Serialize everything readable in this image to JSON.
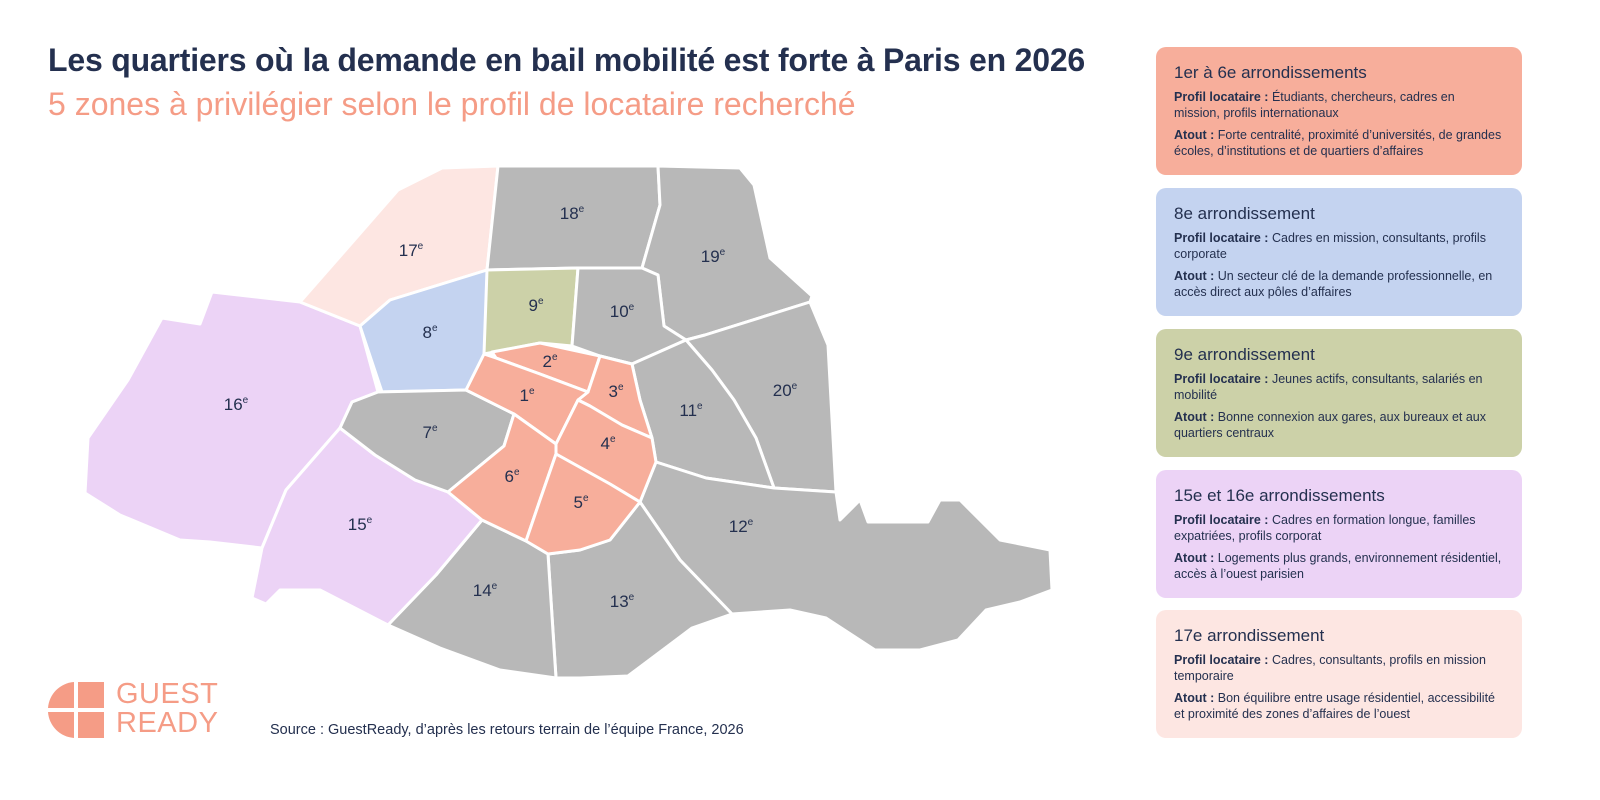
{
  "header": {
    "title": "Les quartiers où la demande en bail mobilité est forte à Paris en 2026",
    "subtitle": "5 zones à privilégier selon le profil de locataire recherché"
  },
  "colors": {
    "title": "#24304f",
    "accent": "#f59c86",
    "zone_central": "#f7ae9b",
    "zone_8": "#c4d3f0",
    "zone_9": "#ccd1a8",
    "zone_west": "#ecd3f6",
    "zone_17": "#fde6e2",
    "other": "#b8b8b8"
  },
  "map": {
    "arrondissements": [
      {
        "id": "1",
        "label": "1e",
        "zone": "central"
      },
      {
        "id": "2",
        "label": "2e",
        "zone": "central"
      },
      {
        "id": "3",
        "label": "3e",
        "zone": "central"
      },
      {
        "id": "4",
        "label": "4e",
        "zone": "central"
      },
      {
        "id": "5",
        "label": "5e",
        "zone": "central"
      },
      {
        "id": "6",
        "label": "6e",
        "zone": "central"
      },
      {
        "id": "7",
        "label": "7e",
        "zone": "other"
      },
      {
        "id": "8",
        "label": "8e",
        "zone": "8"
      },
      {
        "id": "9",
        "label": "9e",
        "zone": "9"
      },
      {
        "id": "10",
        "label": "10e",
        "zone": "other"
      },
      {
        "id": "11",
        "label": "11e",
        "zone": "other"
      },
      {
        "id": "12",
        "label": "12e",
        "zone": "other"
      },
      {
        "id": "13",
        "label": "13e",
        "zone": "other"
      },
      {
        "id": "14",
        "label": "14e",
        "zone": "other"
      },
      {
        "id": "15",
        "label": "15e",
        "zone": "west"
      },
      {
        "id": "16",
        "label": "16e",
        "zone": "west"
      },
      {
        "id": "17",
        "label": "17e",
        "zone": "17"
      },
      {
        "id": "18",
        "label": "18e",
        "zone": "other"
      },
      {
        "id": "19",
        "label": "19e",
        "zone": "other"
      },
      {
        "id": "20",
        "label": "20e",
        "zone": "other"
      }
    ]
  },
  "legend": [
    {
      "title": "1er à 6e arrondissements",
      "profile_label": "Profil locataire :",
      "profile": "Étudiants, chercheurs, cadres en mission, profils internationaux",
      "asset_label": "Atout :",
      "asset": "Forte centralité, proximité d’universités, de grandes écoles, d’institutions et de quartiers d’affaires",
      "color": "#f7ae9b"
    },
    {
      "title": "8e arrondissement",
      "profile_label": "Profil locataire :",
      "profile": "Cadres en mission, consultants, profils corporate",
      "asset_label": "Atout :",
      "asset": "Un secteur clé de la demande professionnelle, en accès direct aux pôles d’affaires",
      "color": "#c4d3f0"
    },
    {
      "title": "9e arrondissement",
      "profile_label": "Profil locataire :",
      "profile": "Jeunes actifs, consultants, salariés en mobilité",
      "asset_label": "Atout :",
      "asset": "Bonne connexion aux gares, aux bureaux et aux quartiers centraux",
      "color": "#ccd1a8"
    },
    {
      "title": "15e et 16e arrondissements",
      "profile_label": "Profil locataire :",
      "profile": "Cadres en formation longue, familles expatriées, profils corporat",
      "asset_label": "Atout :",
      "asset": "Logements plus grands, environnement résidentiel, accès à l’ouest parisien",
      "color": "#ecd3f6"
    },
    {
      "title": "17e arrondissement",
      "profile_label": "Profil locataire :",
      "profile": "Cadres, consultants, profils en mission temporaire",
      "asset_label": "Atout :",
      "asset": "Bon équilibre entre usage résidentiel, accessibilité et proximité des zones d’affaires de l’ouest",
      "color": "#fde6e2"
    }
  ],
  "footer": {
    "source": "Source : GuestReady, d’après les retours terrain de l’équipe France, 2026",
    "logo_line1": "GUEST",
    "logo_line2": "READY"
  }
}
